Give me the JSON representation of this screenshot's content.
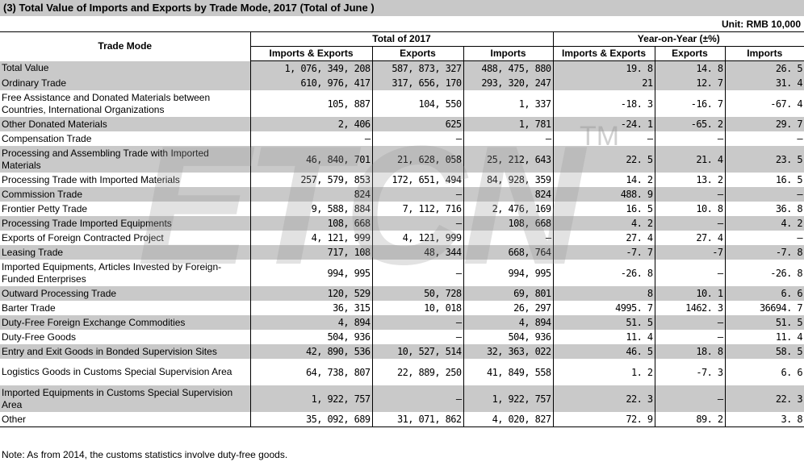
{
  "title": "(3) Total Value of Imports and Exports by Trade Mode,  2017 (Total of June )",
  "unit": "Unit: RMB 10,000",
  "header": {
    "trade_mode": "Trade Mode",
    "total_group": "Total of  2017",
    "yoy_group": "Year-on-Year (±%)",
    "col_ie": "Imports & Exports",
    "col_ex": "Exports",
    "col_im": "Imports",
    "col_yoy_ie": "Imports & Exports",
    "col_yoy_ex": "Exports",
    "col_yoy_im": "Imports"
  },
  "rows": [
    {
      "name": "Total Value",
      "ie": "1, 076, 349, 208",
      "ex": "587, 873, 327",
      "im": "488, 475, 880",
      "yie": "19. 8",
      "yex": "14. 8",
      "yim": "26. 5"
    },
    {
      "name": "Ordinary Trade",
      "ie": "610, 976, 417",
      "ex": "317, 656, 170",
      "im": "293, 320, 247",
      "yie": "21",
      "yex": "12. 7",
      "yim": "31. 4"
    },
    {
      "name": "Free Assistance and Donated Materials between Countries, International Organizations",
      "ie": "105, 887",
      "ex": "104, 550",
      "im": "1, 337",
      "yie": "-18. 3",
      "yex": "-16. 7",
      "yim": "-67. 4"
    },
    {
      "name": "Other Donated Materials",
      "ie": "2, 406",
      "ex": "625",
      "im": "1, 781",
      "yie": "-24. 1",
      "yex": "-65. 2",
      "yim": "29. 7"
    },
    {
      "name": "Compensation Trade",
      "ie": "–",
      "ex": "–",
      "im": "–",
      "yie": "–",
      "yex": "–",
      "yim": "–"
    },
    {
      "name": "Processing and Assembling Trade with Imported Materials",
      "ie": "46, 840, 701",
      "ex": "21, 628, 058",
      "im": "25, 212, 643",
      "yie": "22. 5",
      "yex": "21. 4",
      "yim": "23. 5"
    },
    {
      "name": "Processing Trade with Imported Materials",
      "ie": "257, 579, 853",
      "ex": "172, 651, 494",
      "im": "84, 928, 359",
      "yie": "14. 2",
      "yex": "13. 2",
      "yim": "16. 5"
    },
    {
      "name": "Commission Trade",
      "ie": "824",
      "ex": "–",
      "im": "824",
      "yie": "488. 9",
      "yex": "–",
      "yim": "–"
    },
    {
      "name": "Frontier Petty Trade",
      "ie": "9, 588, 884",
      "ex": "7, 112, 716",
      "im": "2, 476, 169",
      "yie": "16. 5",
      "yex": "10. 8",
      "yim": "36. 8"
    },
    {
      "name": "Processing Trade Imported Equipments",
      "ie": "108, 668",
      "ex": "–",
      "im": "108, 668",
      "yie": "4. 2",
      "yex": "–",
      "yim": "4. 2"
    },
    {
      "name": "Exports of Foreign Contracted Project",
      "ie": "4, 121, 999",
      "ex": "4, 121, 999",
      "im": "–",
      "yie": "27. 4",
      "yex": "27. 4",
      "yim": "–"
    },
    {
      "name": "Leasing Trade",
      "ie": "717, 108",
      "ex": "48, 344",
      "im": "668, 764",
      "yie": "-7. 7",
      "yex": "-7",
      "yim": "-7. 8"
    },
    {
      "name": "Imported Equipments, Articles Invested by Foreign-Funded Enterprises",
      "ie": "994, 995",
      "ex": "–",
      "im": "994, 995",
      "yie": "-26. 8",
      "yex": "–",
      "yim": "-26. 8"
    },
    {
      "name": "Outward Processing Trade",
      "ie": "120, 529",
      "ex": "50, 728",
      "im": "69, 801",
      "yie": "8",
      "yex": "10. 1",
      "yim": "6. 6"
    },
    {
      "name": "Barter Trade",
      "ie": "36, 315",
      "ex": "10, 018",
      "im": "26, 297",
      "yie": "4995. 7",
      "yex": "1462. 3",
      "yim": "36694. 7"
    },
    {
      "name": "Duty-Free Foreign Exchange Commodities",
      "ie": "4, 894",
      "ex": "–",
      "im": "4, 894",
      "yie": "51. 5",
      "yex": "–",
      "yim": "51. 5"
    },
    {
      "name": "Duty-Free Goods",
      "ie": "504, 936",
      "ex": "–",
      "im": "504, 936",
      "yie": "11. 4",
      "yex": "–",
      "yim": "11. 4"
    },
    {
      "name": "Entry and Exit Goods in Bonded Supervision Sites",
      "ie": "42, 890, 536",
      "ex": "10, 527, 514",
      "im": "32, 363, 022",
      "yie": "46. 5",
      "yex": "18. 8",
      "yim": "58. 5"
    },
    {
      "name": "Logistics Goods in Customs Special Supervision Area",
      "ie": "64, 738, 807",
      "ex": "22, 889, 250",
      "im": "41, 849, 558",
      "yie": "1. 2",
      "yex": "-7. 3",
      "yim": "6. 6"
    },
    {
      "name": "Imported Equipments in Customs Special Supervision Area",
      "ie": "1, 922, 757",
      "ex": "–",
      "im": "1, 922, 757",
      "yie": "22. 3",
      "yex": "–",
      "yim": "22. 3"
    },
    {
      "name": "Other",
      "ie": "35, 092, 689",
      "ex": "31, 071, 862",
      "im": "4, 020, 827",
      "yie": "72. 9",
      "yex": "89. 2",
      "yim": "3. 8"
    }
  ],
  "note": "Note: As from 2014, the customs statistics involve duty-free goods.",
  "watermark": {
    "text": "ETCN",
    "tm": "TM"
  }
}
